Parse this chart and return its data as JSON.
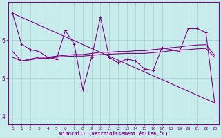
{
  "xlabel": "Windchill (Refroidissement éolien,°C)",
  "background_color": "#c8ecec",
  "line_color": "#800080",
  "xlim": [
    -0.5,
    23.5
  ],
  "ylim": [
    3.8,
    7.0
  ],
  "yticks": [
    4,
    5,
    6
  ],
  "xticks": [
    0,
    1,
    2,
    3,
    4,
    5,
    6,
    7,
    8,
    9,
    10,
    11,
    12,
    13,
    14,
    15,
    16,
    17,
    18,
    19,
    20,
    21,
    22,
    23
  ],
  "series1_x": [
    0,
    1,
    2,
    3,
    4,
    5,
    6,
    7,
    8,
    9,
    10,
    11,
    12,
    13,
    14,
    15,
    16,
    17,
    18,
    19,
    20,
    21,
    22,
    23
  ],
  "series1_y": [
    6.7,
    5.9,
    5.75,
    5.7,
    5.55,
    5.5,
    6.25,
    5.9,
    4.7,
    5.55,
    6.6,
    5.55,
    5.4,
    5.5,
    5.45,
    5.25,
    5.2,
    5.8,
    5.75,
    5.7,
    6.3,
    6.3,
    6.2,
    4.35
  ],
  "series2_x": [
    0,
    23
  ],
  "series2_y": [
    6.7,
    4.35
  ],
  "series3_x": [
    0,
    1,
    2,
    3,
    4,
    5,
    6,
    7,
    8,
    9,
    10,
    11,
    12,
    13,
    14,
    15,
    16,
    17,
    18,
    19,
    20,
    21,
    22,
    23
  ],
  "series3_y": [
    5.7,
    5.45,
    5.5,
    5.55,
    5.55,
    5.58,
    5.6,
    5.62,
    5.62,
    5.65,
    5.68,
    5.68,
    5.7,
    5.7,
    5.72,
    5.72,
    5.75,
    5.77,
    5.8,
    5.82,
    5.85,
    5.87,
    5.88,
    5.6
  ],
  "series4_x": [
    0,
    1,
    2,
    3,
    4,
    5,
    6,
    7,
    8,
    9,
    10,
    11,
    12,
    13,
    14,
    15,
    16,
    17,
    18,
    19,
    20,
    21,
    22,
    23
  ],
  "series4_y": [
    5.55,
    5.45,
    5.48,
    5.52,
    5.52,
    5.55,
    5.57,
    5.58,
    5.58,
    5.6,
    5.62,
    5.63,
    5.64,
    5.65,
    5.65,
    5.65,
    5.67,
    5.69,
    5.72,
    5.74,
    5.75,
    5.77,
    5.78,
    5.55
  ]
}
